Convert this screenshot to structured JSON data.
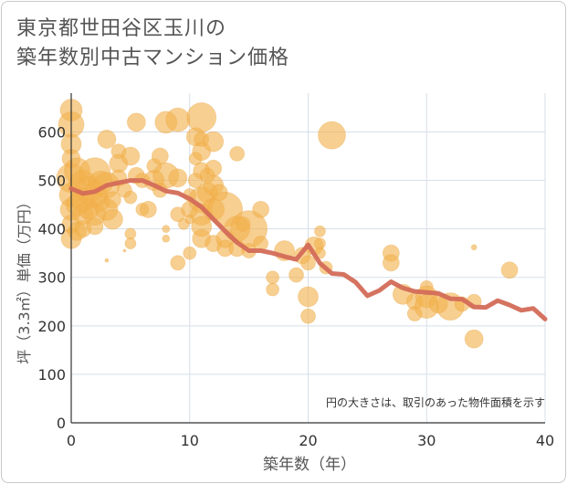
{
  "title": {
    "line1": "東京都世田谷区玉川の",
    "line2": "築年数別中古マンション価格"
  },
  "chart_data": {
    "type": "scatter",
    "title": "東京都世田谷区玉川の築年数別中古マンション価格",
    "xlabel": "築年数（年）",
    "ylabel": "坪（3.3㎡）単価（万円）",
    "xlim": [
      0,
      40
    ],
    "ylim": [
      0,
      680
    ],
    "xticks": [
      0,
      10,
      20,
      30,
      40
    ],
    "yticks": [
      0,
      100,
      200,
      300,
      400,
      500,
      600
    ],
    "grid": true,
    "annotation": "円の大きさは、取引のあった物件面積を示す",
    "colors": {
      "bubble": "#f2b14e",
      "line": "#d36b58",
      "grid": "#d7dfe8",
      "axis": "#333333"
    },
    "bubbles": [
      {
        "x": 0,
        "y": 645,
        "r": 12
      },
      {
        "x": 0,
        "y": 615,
        "r": 14
      },
      {
        "x": 0,
        "y": 575,
        "r": 11
      },
      {
        "x": 0,
        "y": 545,
        "r": 10
      },
      {
        "x": 0,
        "y": 505,
        "r": 16
      },
      {
        "x": 0,
        "y": 470,
        "r": 13
      },
      {
        "x": 0,
        "y": 440,
        "r": 12
      },
      {
        "x": 0,
        "y": 410,
        "r": 10
      },
      {
        "x": 0,
        "y": 380,
        "r": 11
      },
      {
        "x": 0.5,
        "y": 520,
        "r": 14
      },
      {
        "x": 0.5,
        "y": 450,
        "r": 12
      },
      {
        "x": 0.5,
        "y": 395,
        "r": 10
      },
      {
        "x": 1,
        "y": 490,
        "r": 16
      },
      {
        "x": 1,
        "y": 460,
        "r": 13
      },
      {
        "x": 1,
        "y": 430,
        "r": 11
      },
      {
        "x": 1,
        "y": 400,
        "r": 9
      },
      {
        "x": 1.5,
        "y": 480,
        "r": 15
      },
      {
        "x": 1.5,
        "y": 440,
        "r": 11
      },
      {
        "x": 2,
        "y": 515,
        "r": 17
      },
      {
        "x": 2,
        "y": 470,
        "r": 14
      },
      {
        "x": 2,
        "y": 430,
        "r": 12
      },
      {
        "x": 2,
        "y": 405,
        "r": 9
      },
      {
        "x": 2.5,
        "y": 495,
        "r": 13
      },
      {
        "x": 2.5,
        "y": 455,
        "r": 10
      },
      {
        "x": 3,
        "y": 585,
        "r": 10
      },
      {
        "x": 3,
        "y": 490,
        "r": 14
      },
      {
        "x": 3,
        "y": 440,
        "r": 12
      },
      {
        "x": 3,
        "y": 335,
        "r": 2
      },
      {
        "x": 3.5,
        "y": 460,
        "r": 9
      },
      {
        "x": 3.5,
        "y": 420,
        "r": 11
      },
      {
        "x": 4,
        "y": 560,
        "r": 8
      },
      {
        "x": 4,
        "y": 535,
        "r": 10
      },
      {
        "x": 4,
        "y": 505,
        "r": 9
      },
      {
        "x": 4.5,
        "y": 480,
        "r": 8
      },
      {
        "x": 4.5,
        "y": 355,
        "r": 1.5
      },
      {
        "x": 5,
        "y": 550,
        "r": 10
      },
      {
        "x": 5,
        "y": 465,
        "r": 7
      },
      {
        "x": 5,
        "y": 390,
        "r": 6
      },
      {
        "x": 5,
        "y": 370,
        "r": 6
      },
      {
        "x": 5.5,
        "y": 620,
        "r": 10
      },
      {
        "x": 5.5,
        "y": 510,
        "r": 9
      },
      {
        "x": 6,
        "y": 500,
        "r": 8
      },
      {
        "x": 6,
        "y": 440,
        "r": 7
      },
      {
        "x": 6.5,
        "y": 440,
        "r": 9
      },
      {
        "x": 7,
        "y": 530,
        "r": 8
      },
      {
        "x": 7,
        "y": 500,
        "r": 11
      },
      {
        "x": 7.5,
        "y": 550,
        "r": 9
      },
      {
        "x": 7.5,
        "y": 480,
        "r": 8
      },
      {
        "x": 8,
        "y": 620,
        "r": 12
      },
      {
        "x": 8,
        "y": 510,
        "r": 14
      },
      {
        "x": 8,
        "y": 400,
        "r": 4
      },
      {
        "x": 8,
        "y": 380,
        "r": 4
      },
      {
        "x": 9,
        "y": 625,
        "r": 13
      },
      {
        "x": 9,
        "y": 505,
        "r": 10
      },
      {
        "x": 9,
        "y": 430,
        "r": 8
      },
      {
        "x": 9,
        "y": 330,
        "r": 8
      },
      {
        "x": 9.5,
        "y": 410,
        "r": 6
      },
      {
        "x": 10,
        "y": 470,
        "r": 7
      },
      {
        "x": 10,
        "y": 440,
        "r": 9
      },
      {
        "x": 10,
        "y": 420,
        "r": 5
      },
      {
        "x": 10,
        "y": 350,
        "r": 7
      },
      {
        "x": 10.5,
        "y": 590,
        "r": 10
      },
      {
        "x": 10.5,
        "y": 545,
        "r": 7
      },
      {
        "x": 10.5,
        "y": 500,
        "r": 8
      },
      {
        "x": 11,
        "y": 630,
        "r": 16
      },
      {
        "x": 11,
        "y": 585,
        "r": 8
      },
      {
        "x": 11,
        "y": 560,
        "r": 10
      },
      {
        "x": 11,
        "y": 520,
        "r": 9
      },
      {
        "x": 11,
        "y": 460,
        "r": 14
      },
      {
        "x": 11,
        "y": 430,
        "r": 12
      },
      {
        "x": 11,
        "y": 405,
        "r": 11
      },
      {
        "x": 11,
        "y": 380,
        "r": 10
      },
      {
        "x": 11.5,
        "y": 510,
        "r": 8
      },
      {
        "x": 11.5,
        "y": 475,
        "r": 11
      },
      {
        "x": 12,
        "y": 580,
        "r": 11
      },
      {
        "x": 12,
        "y": 525,
        "r": 9
      },
      {
        "x": 12,
        "y": 490,
        "r": 11
      },
      {
        "x": 12,
        "y": 440,
        "r": 12
      },
      {
        "x": 12,
        "y": 370,
        "r": 9
      },
      {
        "x": 12.5,
        "y": 475,
        "r": 9
      },
      {
        "x": 13,
        "y": 440,
        "r": 19
      },
      {
        "x": 13,
        "y": 380,
        "r": 10
      },
      {
        "x": 13,
        "y": 360,
        "r": 9
      },
      {
        "x": 14,
        "y": 555,
        "r": 8
      },
      {
        "x": 14,
        "y": 400,
        "r": 14
      },
      {
        "x": 14,
        "y": 360,
        "r": 9
      },
      {
        "x": 14.5,
        "y": 410,
        "r": 8
      },
      {
        "x": 15,
        "y": 400,
        "r": 20
      },
      {
        "x": 15,
        "y": 355,
        "r": 8
      },
      {
        "x": 16,
        "y": 440,
        "r": 9
      },
      {
        "x": 16,
        "y": 370,
        "r": 8
      },
      {
        "x": 17,
        "y": 300,
        "r": 7
      },
      {
        "x": 17,
        "y": 275,
        "r": 7
      },
      {
        "x": 18,
        "y": 355,
        "r": 11
      },
      {
        "x": 19,
        "y": 305,
        "r": 8
      },
      {
        "x": 19.5,
        "y": 345,
        "r": 9
      },
      {
        "x": 20,
        "y": 260,
        "r": 11
      },
      {
        "x": 20,
        "y": 220,
        "r": 8
      },
      {
        "x": 20,
        "y": 330,
        "r": 8
      },
      {
        "x": 20.5,
        "y": 365,
        "r": 10
      },
      {
        "x": 21,
        "y": 395,
        "r": 6
      },
      {
        "x": 21,
        "y": 370,
        "r": 6
      },
      {
        "x": 21,
        "y": 350,
        "r": 6
      },
      {
        "x": 21.5,
        "y": 320,
        "r": 7
      },
      {
        "x": 22,
        "y": 593,
        "r": 15
      },
      {
        "x": 27,
        "y": 350,
        "r": 9
      },
      {
        "x": 27,
        "y": 330,
        "r": 9
      },
      {
        "x": 28,
        "y": 265,
        "r": 11
      },
      {
        "x": 29,
        "y": 250,
        "r": 9
      },
      {
        "x": 29,
        "y": 225,
        "r": 8
      },
      {
        "x": 30,
        "y": 280,
        "r": 7
      },
      {
        "x": 30,
        "y": 260,
        "r": 12
      },
      {
        "x": 30,
        "y": 240,
        "r": 13
      },
      {
        "x": 31,
        "y": 245,
        "r": 10
      },
      {
        "x": 32,
        "y": 240,
        "r": 15
      },
      {
        "x": 33,
        "y": 245,
        "r": 8
      },
      {
        "x": 34,
        "y": 250,
        "r": 8
      },
      {
        "x": 34,
        "y": 362,
        "r": 3
      },
      {
        "x": 34,
        "y": 173,
        "r": 10
      },
      {
        "x": 37,
        "y": 315,
        "r": 9
      }
    ],
    "trend": {
      "name": "",
      "x": [
        0,
        1,
        2,
        3,
        4,
        5,
        6,
        7,
        8,
        9,
        10,
        11,
        12,
        13,
        14,
        15,
        16,
        17,
        18,
        19,
        20,
        21,
        22,
        23,
        24,
        25,
        26,
        27,
        28,
        29,
        30,
        31,
        32,
        33,
        34,
        35,
        36,
        37,
        38,
        39,
        40
      ],
      "y": [
        483,
        473,
        477,
        490,
        495,
        500,
        500,
        490,
        478,
        474,
        462,
        445,
        420,
        395,
        372,
        355,
        355,
        350,
        343,
        337,
        367,
        329,
        308,
        306,
        290,
        262,
        273,
        291,
        278,
        271,
        269,
        267,
        256,
        255,
        239,
        238,
        252,
        243,
        232,
        236,
        214
      ]
    }
  }
}
